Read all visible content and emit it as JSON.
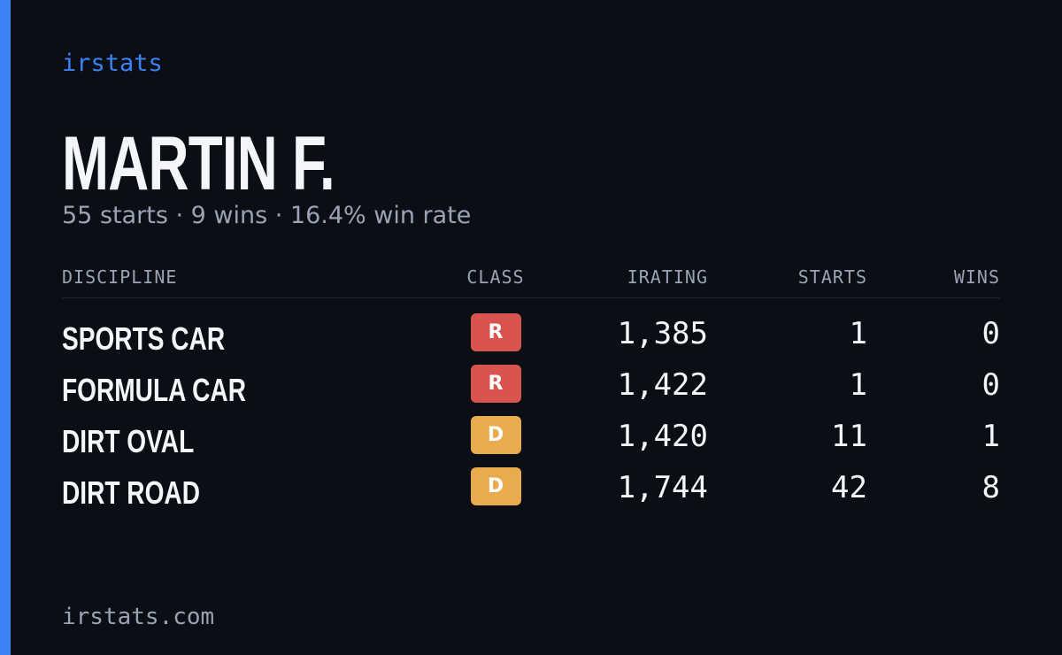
{
  "brand": "irstats",
  "header": {
    "name": "MARTIN F.",
    "summary": "55 starts · 9 wins · 16.4% win rate"
  },
  "table": {
    "columns": [
      "DISCIPLINE",
      "CLASS",
      "IRATING",
      "STARTS",
      "WINS"
    ],
    "rows": [
      {
        "discipline": "SPORTS CAR",
        "class": "R",
        "color": "#d9534f",
        "irating": "1,385",
        "starts": "1",
        "wins": "0"
      },
      {
        "discipline": "FORMULA CAR",
        "class": "R",
        "color": "#d9534f",
        "irating": "1,422",
        "starts": "1",
        "wins": "0"
      },
      {
        "discipline": "DIRT OVAL",
        "class": "D",
        "color": "#e8ac4e",
        "irating": "1,420",
        "starts": "11",
        "wins": "1"
      },
      {
        "discipline": "DIRT ROAD",
        "class": "D",
        "color": "#e8ac4e",
        "irating": "1,744",
        "starts": "42",
        "wins": "8"
      }
    ]
  },
  "footer": {
    "url": "irstats.com"
  }
}
